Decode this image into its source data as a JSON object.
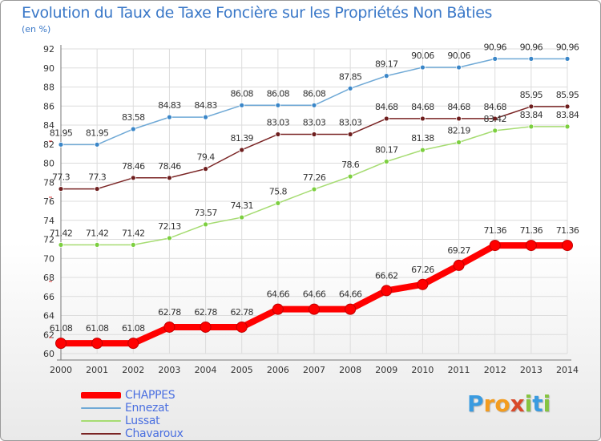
{
  "title": "Evolution du Taux de Taxe Foncière sur les Propriétés Non Bâties",
  "unit_label": "(en %)",
  "brand": {
    "letters": [
      "P",
      "r",
      "o",
      "x",
      "i",
      "t",
      "i"
    ],
    "colors": [
      "#3a9be0",
      "#f39c1f",
      "#f39c1f",
      "#d94a2a",
      "#86c440",
      "#3a9be0",
      "#86c440"
    ]
  },
  "chart_data": {
    "type": "line",
    "title": "Evolution du Taux de Taxe Foncière sur les Propriétés Non Bâties",
    "ylabel": "(en %)",
    "xlabel": "",
    "x": [
      2000,
      2001,
      2002,
      2003,
      2004,
      2005,
      2006,
      2007,
      2008,
      2009,
      2010,
      2011,
      2012,
      2013,
      2014
    ],
    "ylim": [
      60,
      92
    ],
    "yticks": [
      60,
      62,
      64,
      66,
      68,
      70,
      72,
      74,
      76,
      78,
      80,
      82,
      84,
      86,
      88,
      90,
      92
    ],
    "grid": true,
    "legend_position": "bottom-left",
    "series": [
      {
        "name": "CHAPPES",
        "color": "#ff0000",
        "width": 8,
        "marker": "#ff0000",
        "values": [
          61.08,
          61.08,
          61.08,
          62.78,
          62.78,
          62.78,
          64.66,
          64.66,
          64.66,
          66.62,
          67.26,
          69.27,
          71.36,
          71.36,
          71.36
        ],
        "labels": [
          "61.08",
          "61.08",
          "61.08",
          "62.78",
          "62.78",
          "62.78",
          "64.66",
          "64.66",
          "64.66",
          "66.62",
          "67.26",
          "69.27",
          "71.36",
          "71.36",
          "71.36"
        ]
      },
      {
        "name": "Ennezat",
        "color": "#6fa9d6",
        "width": 1.5,
        "marker": "#3a86c8",
        "values": [
          81.95,
          81.95,
          83.58,
          84.83,
          84.83,
          86.08,
          86.08,
          86.08,
          87.85,
          89.17,
          90.06,
          90.06,
          90.96,
          90.96,
          90.96
        ],
        "labels": [
          "81.95",
          "81.95",
          "83.58",
          "84.83",
          "84.83",
          "86.08",
          "86.08",
          "86.08",
          "87.85",
          "89.17",
          "90.06",
          "90.06",
          "90.96",
          "90.96",
          "90.96"
        ]
      },
      {
        "name": "Lussat",
        "color": "#a6dc72",
        "width": 1.5,
        "marker": "#7ccf3f",
        "values": [
          71.42,
          71.42,
          71.42,
          72.13,
          73.57,
          74.31,
          75.8,
          77.26,
          78.6,
          80.17,
          81.38,
          82.19,
          83.42,
          83.84,
          83.84
        ],
        "labels": [
          "71.42",
          "71.42",
          "71.42",
          "72.13",
          "73.57",
          "74.31",
          "75.8",
          "77.26",
          "78.6",
          "80.17",
          "81.38",
          "82.19",
          "83.42",
          "83.84",
          "83.84"
        ]
      },
      {
        "name": "Chavaroux",
        "color": "#7a2424",
        "width": 1.5,
        "marker": "#6e1e1e",
        "values": [
          77.3,
          77.3,
          78.46,
          78.46,
          79.4,
          81.39,
          83.03,
          83.03,
          83.03,
          84.68,
          84.68,
          84.68,
          84.68,
          85.95,
          85.95
        ],
        "labels": [
          "77.3",
          "77.3",
          "78.46",
          "78.46",
          "79.4",
          "81.39",
          "83.03",
          "83.03",
          "83.03",
          "84.68",
          "84.68",
          "84.68",
          "84.68",
          "85.95",
          "85.95"
        ]
      }
    ]
  }
}
